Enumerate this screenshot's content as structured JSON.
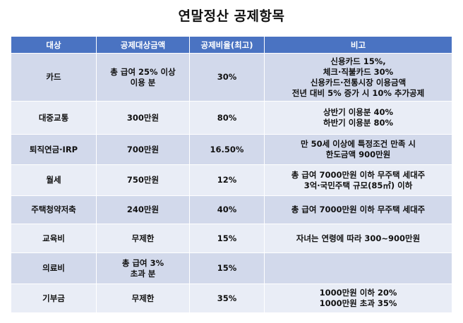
{
  "title": "연말정산 공제항목",
  "headers": [
    "대상",
    "공제대상금액",
    "공제비율(최고)",
    "비고"
  ],
  "rows": [
    {
      "target": "카드",
      "amount": [
        "총 급여 25% 이상",
        "이용 분"
      ],
      "rate": "30%",
      "note": [
        "신용카드 15%,",
        "체크·직불카드 30%",
        "신용카드·전통시장 이용금액",
        "전년 대비 5% 증가 시 10% 추가공제"
      ]
    },
    {
      "target": "대중교통",
      "amount": [
        "300만원"
      ],
      "rate": "80%",
      "note": [
        "상반기 이용분 40%",
        "하반기 이용분 80%"
      ]
    },
    {
      "target": "퇴직연금·IRP",
      "amount": [
        "700만원"
      ],
      "rate": "16.50%",
      "note": [
        "만 50세 이상에 특정조건 만족 시",
        "한도금액 900만원"
      ]
    },
    {
      "target": "월세",
      "amount": [
        "750만원"
      ],
      "rate": "12%",
      "note": [
        "총 급여 7000만원 이하 무주택 세대주",
        "3억·국민주택 규모(85㎡) 이하"
      ]
    },
    {
      "target": "주택청약저축",
      "amount": [
        "240만원"
      ],
      "rate": "40%",
      "note": [
        "총 급여 7000만원 이하 무주택 세대주"
      ]
    },
    {
      "target": "교육비",
      "amount": [
        "무제한"
      ],
      "rate": "15%",
      "note": [
        "자녀는 연령에 따라 300~900만원"
      ]
    },
    {
      "target": "의료비",
      "amount": [
        "총 급여 3%",
        "초과 분"
      ],
      "rate": "15%",
      "note": []
    },
    {
      "target": "기부금",
      "amount": [
        "무제한"
      ],
      "rate": "35%",
      "note": [
        "1000만원 이하 20%",
        "1000만원 초과 35%"
      ]
    }
  ]
}
